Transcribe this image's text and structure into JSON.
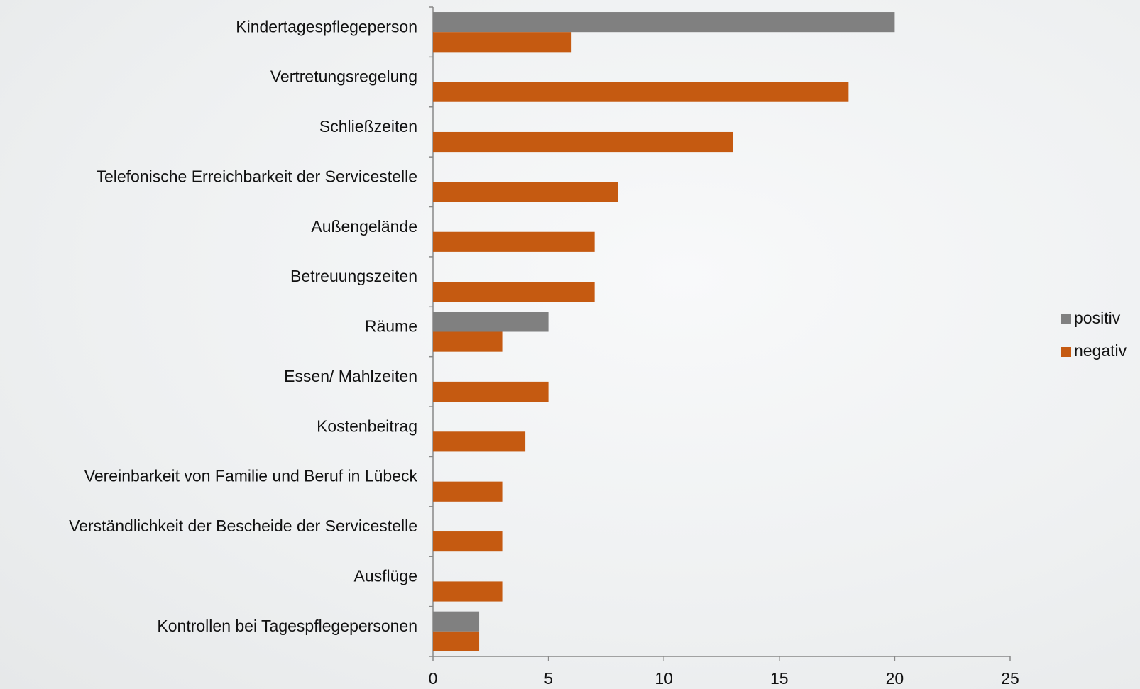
{
  "chart_data": {
    "type": "barh",
    "categories": [
      "Kindertagespflegeperson",
      "Vertretungsregelung",
      "Schließzeiten",
      "Telefonische Erreichbarkeit der Servicestelle",
      "Außengelände",
      "Betreuungszeiten",
      "Räume",
      "Essen/ Mahlzeiten",
      "Kostenbeitrag",
      "Vereinbarkeit von Familie und Beruf in Lübeck",
      "Verständlichkeit der Bescheide der Servicestelle",
      "Ausflüge",
      "Kontrollen bei Tagespflegepersonen"
    ],
    "series": [
      {
        "name": "positiv",
        "color": "#808080",
        "values": [
          20,
          0,
          0,
          0,
          0,
          0,
          5,
          0,
          0,
          0,
          0,
          0,
          2
        ]
      },
      {
        "name": "negativ",
        "color": "#c55a11",
        "values": [
          6,
          18,
          13,
          8,
          7,
          7,
          3,
          5,
          4,
          3,
          3,
          3,
          2
        ]
      }
    ],
    "xlim": [
      0,
      25
    ],
    "xticks": [
      0,
      5,
      10,
      15,
      20,
      25
    ],
    "legend": "right"
  }
}
